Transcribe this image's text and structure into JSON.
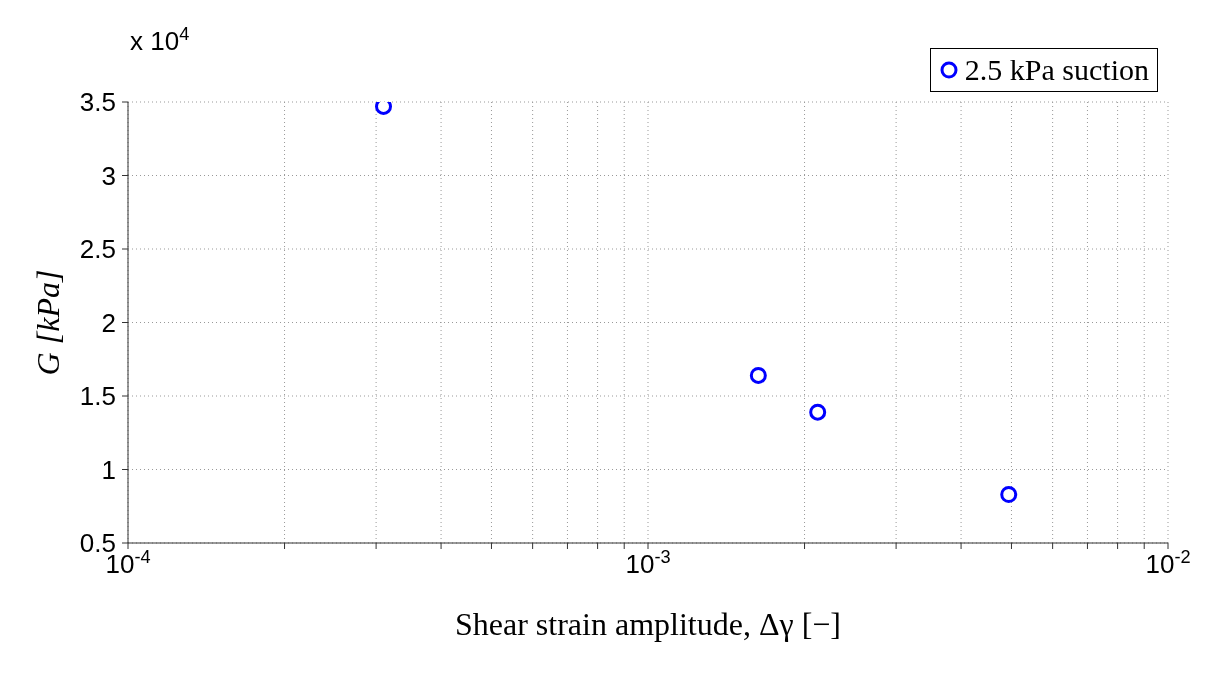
{
  "chart_data": {
    "type": "scatter",
    "xlabel": "Shear strain amplitude, Δγ [−]",
    "ylabel": "G [kPa]",
    "log": "x",
    "grid": true,
    "legend": "top right",
    "marker": "circle",
    "xlim": [
      0.0001,
      0.01
    ],
    "xticks": [
      {
        "value": 0.0001,
        "label": "10$^{-4}$"
      },
      {
        "value": 0.0002,
        "label": null
      },
      {
        "value": 0.0003,
        "label": null
      },
      {
        "value": 0.0004,
        "label": null
      },
      {
        "value": 0.0005,
        "label": null
      },
      {
        "value": 0.0006,
        "label": null
      },
      {
        "value": 0.0007,
        "label": null
      },
      {
        "value": 0.0008,
        "label": null
      },
      {
        "value": 0.0009,
        "label": null
      },
      {
        "value": 0.001,
        "label": "10$^{-3}$"
      },
      {
        "value": 0.002,
        "label": null
      },
      {
        "value": 0.003,
        "label": null
      },
      {
        "value": 0.004,
        "label": null
      },
      {
        "value": 0.005,
        "label": null
      },
      {
        "value": 0.006,
        "label": null
      },
      {
        "value": 0.007,
        "label": null
      },
      {
        "value": 0.008,
        "label": null
      },
      {
        "value": 0.009,
        "label": null
      },
      {
        "value": 0.01,
        "label": "10$^{-2}$"
      }
    ],
    "ylim": [
      0.5,
      3.5
    ],
    "yticks": [
      0.5,
      1,
      1.5,
      2,
      2.5,
      3,
      3.5
    ],
    "annotations": [
      "x 10$^{4}$"
    ],
    "series": [
      {
        "name": "2.5 kPa suction",
        "color": "#0000ff",
        "x": [
          0.00031,
          0.00163,
          0.00212,
          0.00494
        ],
        "values": [
          3.47,
          1.64,
          1.39,
          0.83
        ]
      }
    ]
  }
}
